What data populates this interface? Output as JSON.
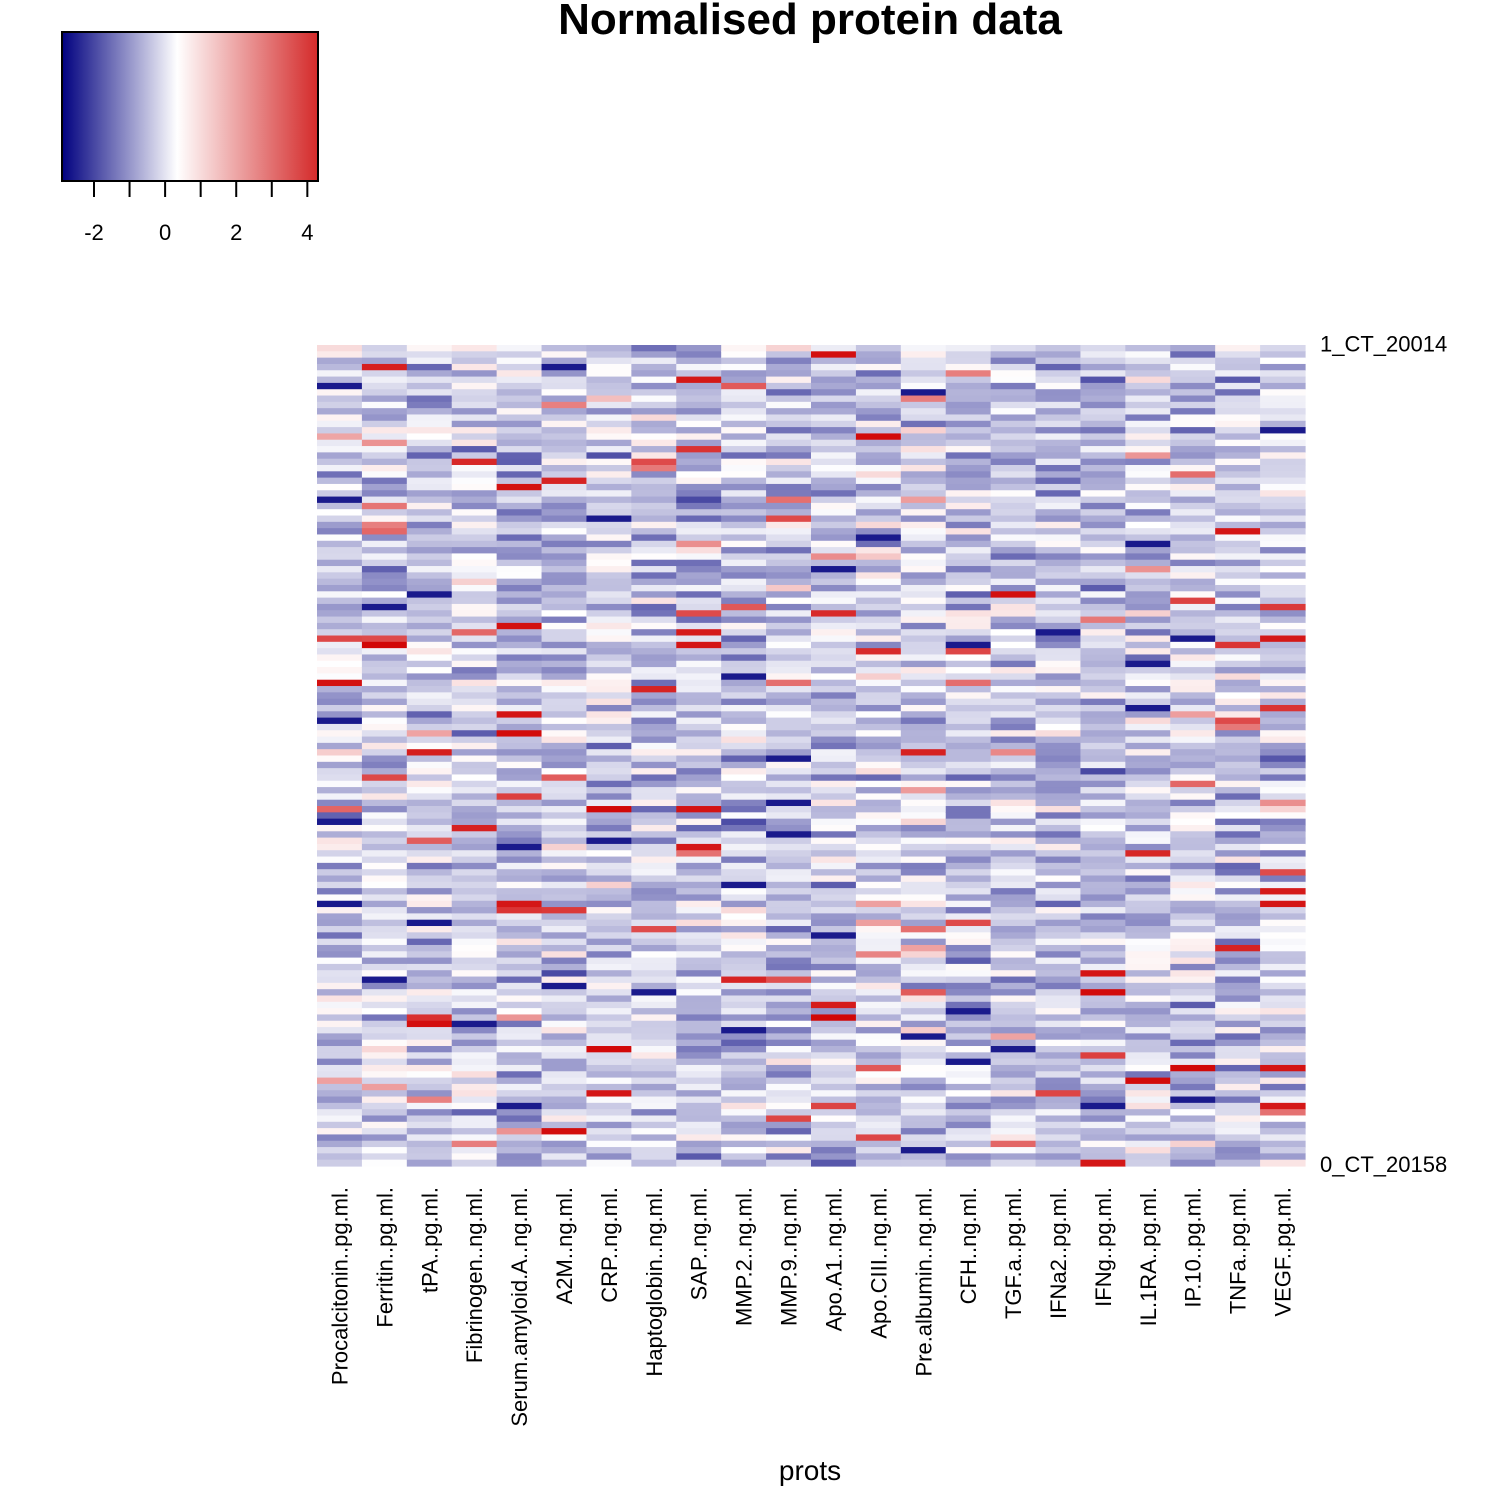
{
  "chart_data": {
    "type": "heatmap",
    "title": "Normalised protein data",
    "xlabel": "prots",
    "columns": [
      "Procalcitonin..pg.ml.",
      "Ferritin..pg.ml.",
      "tPA..pg.ml.",
      "Fibrinogen..ng.ml.",
      "Serum.amyloid.A..ng.ml.",
      "A2M..ng.ml.",
      "CRP..ng.ml.",
      "Haptoglobin..ng.ml.",
      "SAP..ng.ml.",
      "MMP.2..ng.ml.",
      "MMP.9..ng.ml.",
      "Apo.A1..ng.ml.",
      "Apo.CIII..ng.ml.",
      "Pre.albumin..ng.ml.",
      "CFH..ng.ml.",
      "TGF.a..pg.ml.",
      "IFNa2..pg.ml.",
      "IFNg..pg.ml.",
      "IL.1RA..pg.ml.",
      "IP.10..pg.ml.",
      "TNFa..pg.ml.",
      "VEGF..pg.ml."
    ],
    "row_labels_first": "1_CT_20014",
    "row_labels_last": "0_CT_20158",
    "n_rows": 130,
    "color_key": {
      "ticks": [
        "-2",
        "0",
        "2",
        "4"
      ],
      "range": [
        -2.9,
        4.3
      ],
      "colors": [
        "#00007f",
        "#ffffff",
        "#d00000"
      ]
    },
    "value_range": [
      -2.9,
      4.3
    ]
  }
}
